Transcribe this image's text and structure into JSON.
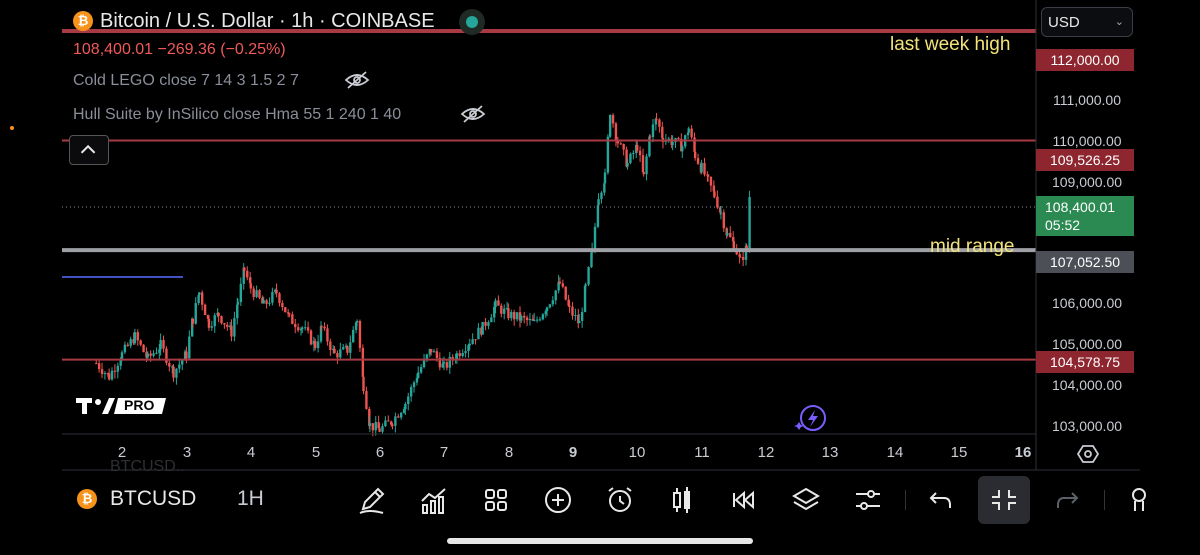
{
  "header": {
    "coin_icon_glyph": "₿",
    "title": "Bitcoin / U.S. Dollar · 1h · COINBASE",
    "price_line": "108,400.01  −269.36 (−0.25%)",
    "indicators": [
      {
        "label": "Cold LEGO close 7 14 3 1.5 2 7",
        "icon": "eye-off-icon"
      },
      {
        "label": "Hull Suite by InSilico close Hma 55 1 240 1 40",
        "icon": "eye-off-icon"
      }
    ]
  },
  "currency_select": {
    "value": "USD"
  },
  "annotations": {
    "top": "last week high",
    "mid": "mid range"
  },
  "price_tags": {
    "t112": "112,000.00",
    "t109": "109,526.25",
    "current": "108,400.01",
    "countdown": "05:52",
    "t107": "107,052.50",
    "t104": "104,578.75"
  },
  "y_axis_labels": [
    "111,000.00",
    "110,000.00",
    "109,000.00",
    "106,000.00",
    "105,000.00",
    "104,000.00",
    "103,000.00"
  ],
  "x_axis_labels": [
    "2",
    "3",
    "4",
    "5",
    "6",
    "7",
    "8",
    "9",
    "10",
    "11",
    "12",
    "13",
    "14",
    "15",
    "16"
  ],
  "logo_text": "PRO",
  "toolbar": {
    "symbol": "BTCUSD",
    "interval": "1H",
    "ghost_text": "BTCUSD..",
    "icons": [
      "draw-pen-icon",
      "indicators-chart-icon",
      "grid-layout-icon",
      "add-plus-icon",
      "alarm-clock-icon",
      "candles-icon",
      "replay-rewind-icon",
      "layers-icon",
      "settings-sliders-icon",
      "undo-icon",
      "fullscreen-exit-icon",
      "redo-icon",
      "person-icon"
    ]
  },
  "colors": {
    "up": "#26a69a",
    "down": "#ef5350",
    "level_line": "#a83a44",
    "mid_line": "#9ea0a5",
    "accent": "#f3e37c"
  },
  "chart_data": {
    "type": "candlestick",
    "y_range": [
      102900,
      112700
    ],
    "x_day_labels": [
      2,
      3,
      4,
      5,
      6,
      7,
      8,
      9,
      10,
      11,
      12,
      13,
      14,
      15,
      16
    ],
    "horizontal_levels": [
      112000.0,
      109526.25,
      107052.5,
      104578.75
    ],
    "last_price": 108400.01,
    "close_path": [
      [
        1.6,
        104500
      ],
      [
        1.8,
        104200
      ],
      [
        2.0,
        104700
      ],
      [
        2.2,
        105100
      ],
      [
        2.4,
        104600
      ],
      [
        2.6,
        104900
      ],
      [
        2.8,
        104300
      ],
      [
        3.0,
        104700
      ],
      [
        3.1,
        105500
      ],
      [
        3.2,
        106100
      ],
      [
        3.35,
        105400
      ],
      [
        3.5,
        105600
      ],
      [
        3.7,
        105200
      ],
      [
        3.8,
        105900
      ],
      [
        3.9,
        106600
      ],
      [
        4.0,
        106200
      ],
      [
        4.2,
        105800
      ],
      [
        4.4,
        106100
      ],
      [
        4.6,
        105500
      ],
      [
        4.8,
        105300
      ],
      [
        5.0,
        104900
      ],
      [
        5.1,
        105300
      ],
      [
        5.3,
        104700
      ],
      [
        5.5,
        104800
      ],
      [
        5.65,
        105500
      ],
      [
        5.75,
        104000
      ],
      [
        5.85,
        103100
      ],
      [
        6.0,
        103000
      ],
      [
        6.2,
        103200
      ],
      [
        6.4,
        103600
      ],
      [
        6.6,
        104300
      ],
      [
        6.8,
        104800
      ],
      [
        7.0,
        104400
      ],
      [
        7.2,
        104700
      ],
      [
        7.4,
        105000
      ],
      [
        7.6,
        105300
      ],
      [
        7.8,
        105800
      ],
      [
        8.0,
        105600
      ],
      [
        8.2,
        105500
      ],
      [
        8.4,
        105400
      ],
      [
        8.6,
        105800
      ],
      [
        8.8,
        106300
      ],
      [
        8.95,
        105700
      ],
      [
        9.1,
        105400
      ],
      [
        9.2,
        106200
      ],
      [
        9.3,
        107000
      ],
      [
        9.4,
        108300
      ],
      [
        9.5,
        108700
      ],
      [
        9.58,
        110200
      ],
      [
        9.7,
        109500
      ],
      [
        9.85,
        109000
      ],
      [
        10.0,
        109400
      ],
      [
        10.1,
        108700
      ],
      [
        10.2,
        109700
      ],
      [
        10.3,
        110000
      ],
      [
        10.4,
        109600
      ],
      [
        10.55,
        109500
      ],
      [
        10.7,
        109400
      ],
      [
        10.8,
        109800
      ],
      [
        10.9,
        109200
      ],
      [
        11.0,
        108900
      ],
      [
        11.1,
        108600
      ],
      [
        11.2,
        108300
      ],
      [
        11.3,
        107900
      ],
      [
        11.4,
        107400
      ],
      [
        11.5,
        107200
      ],
      [
        11.6,
        106800
      ],
      [
        11.7,
        107100
      ],
      [
        11.75,
        108400
      ]
    ]
  }
}
